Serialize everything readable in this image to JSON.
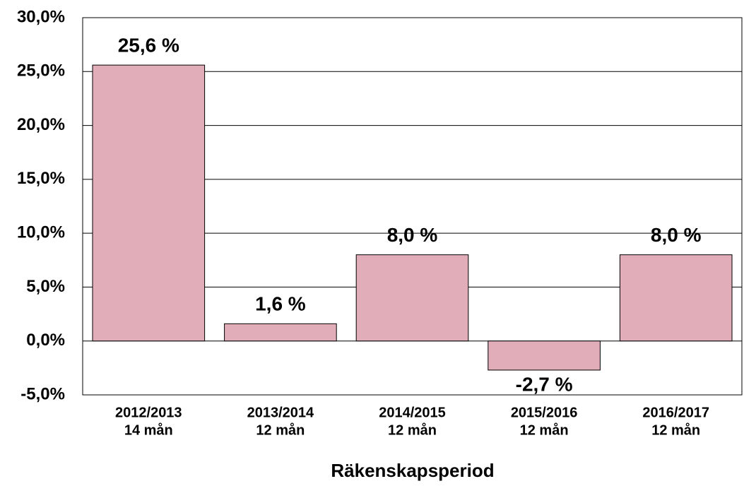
{
  "chart_data": {
    "type": "bar",
    "categories": [
      [
        "2012/2013",
        "14 mån"
      ],
      [
        "2013/2014",
        "12 mån"
      ],
      [
        "2014/2015",
        "12 mån"
      ],
      [
        "2015/2016",
        "12 mån"
      ],
      [
        "2016/2017",
        "12 mån"
      ]
    ],
    "values": [
      25.6,
      1.6,
      8.0,
      -2.7,
      8.0
    ],
    "value_labels": [
      "25,6 %",
      "1,6 %",
      "8,0 %",
      "-2,7 %",
      "8,0 %"
    ],
    "color": "#e0adb9",
    "x_label": "Räkenskapsperiod",
    "ylim": [
      -5,
      30
    ],
    "yticks": [
      {
        "value": -5,
        "label": "-5,0%"
      },
      {
        "value": 0,
        "label": "0,0%"
      },
      {
        "value": 5,
        "label": "5,0%"
      },
      {
        "value": 10,
        "label": "10,0%"
      },
      {
        "value": 15,
        "label": "15,0%"
      },
      {
        "value": 20,
        "label": "20,0%"
      },
      {
        "value": 25,
        "label": "25,0%"
      },
      {
        "value": 30,
        "label": "30,0%"
      }
    ],
    "grid": true
  }
}
